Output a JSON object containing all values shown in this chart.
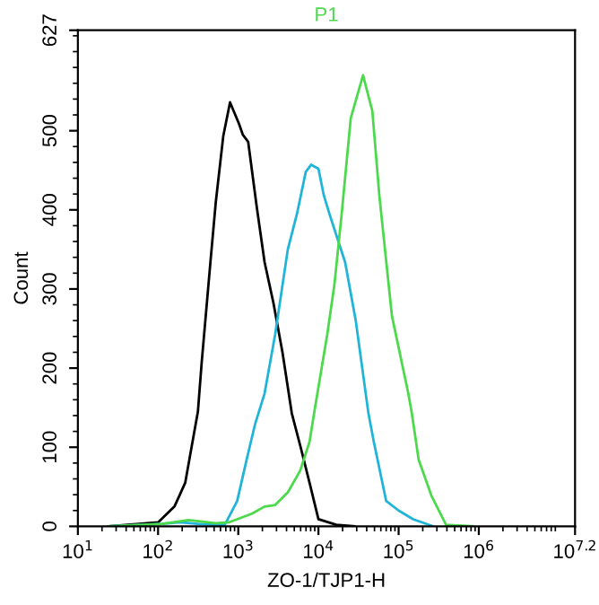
{
  "chart_data": {
    "type": "line",
    "xlabel": "ZO-1/TJP1-H",
    "ylabel": "Count",
    "log": "x",
    "legend": "top",
    "grid": false,
    "marker": "none",
    "line_style": "solid",
    "xlim": [
      10,
      15848932
    ],
    "ylim": [
      0,
      627
    ],
    "xticks": [
      {
        "value": 10,
        "label": "10$^{1}$"
      },
      {
        "value": 100,
        "label": "10$^{2}$"
      },
      {
        "value": 1000,
        "label": "10$^{3}$"
      },
      {
        "value": 10000,
        "label": "10$^{4}$"
      },
      {
        "value": 100000,
        "label": "10$^{5}$"
      },
      {
        "value": 1000000,
        "label": "10$^{6}$"
      },
      {
        "value": 15848932,
        "label": "10$^{7.2}$"
      }
    ],
    "yticks": [
      0,
      100,
      200,
      300,
      400,
      500,
      627
    ],
    "series": [
      {
        "color": "#000000",
        "x": [
          24,
          100,
          160,
          218,
          314,
          350,
          450,
          525,
          650,
          790,
          1020,
          1140,
          1330,
          1710,
          2130,
          2750,
          3560,
          4650,
          6000,
          7750,
          10000,
          16700,
          28000
        ],
        "values": [
          0,
          5,
          25,
          55,
          145,
          207,
          334,
          410,
          493,
          536,
          509,
          495,
          486,
          402,
          334,
          282,
          220,
          143,
          100,
          55,
          9,
          2,
          0
        ]
      },
      {
        "color": "#1fb4d8",
        "x": [
          24,
          112,
          186,
          314,
          525,
          680,
          970,
          1270,
          1630,
          2130,
          2890,
          4150,
          5400,
          6950,
          8100,
          10000,
          11700,
          13700,
          21500,
          29300,
          42000,
          49000,
          70000,
          100000,
          152000,
          256000
        ],
        "values": [
          0,
          3,
          5,
          3,
          2,
          2,
          32,
          84,
          130,
          168,
          243,
          350,
          395,
          448,
          457,
          452,
          418,
          395,
          334,
          259,
          143,
          107,
          32,
          20,
          9,
          1
        ]
      },
      {
        "name": "P1",
        "color": "#4cd94c",
        "x": [
          24,
          112,
          240,
          525,
          760,
          1480,
          2130,
          2890,
          4150,
          5900,
          7750,
          8900,
          12900,
          15800,
          19500,
          25300,
          36000,
          47000,
          57500,
          82500,
          132000,
          145000,
          178000,
          256000,
          390000,
          850000
        ],
        "values": [
          0,
          3,
          8,
          4,
          5,
          16,
          25,
          27,
          43,
          70,
          107,
          145,
          243,
          305,
          395,
          516,
          570,
          525,
          418,
          266,
          168,
          145,
          84,
          39,
          2,
          0
        ]
      }
    ]
  }
}
